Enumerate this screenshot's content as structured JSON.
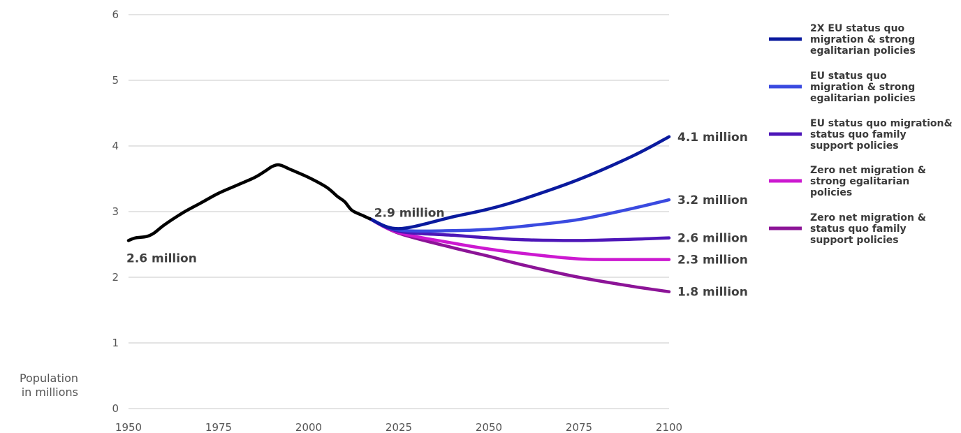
{
  "chart_data": {
    "type": "line",
    "ylabel_lines": [
      "Population",
      "in millions"
    ],
    "ylim": [
      0,
      6
    ],
    "yticks": [
      0,
      1,
      2,
      3,
      4,
      5,
      6
    ],
    "xlim": [
      1950,
      2100
    ],
    "xticks": [
      1950,
      1975,
      2000,
      2025,
      2050,
      2075,
      2100
    ],
    "grid": true,
    "legend_position": "right",
    "historical": {
      "color": "#000000",
      "x": [
        1950,
        1952,
        1955,
        1957,
        1960,
        1965,
        1970,
        1975,
        1980,
        1985,
        1988,
        1990,
        1992,
        1995,
        2000,
        2005,
        2008,
        2010,
        2012,
        2015,
        2017
      ],
      "y": [
        2.56,
        2.6,
        2.62,
        2.67,
        2.8,
        2.98,
        3.13,
        3.28,
        3.4,
        3.52,
        3.62,
        3.69,
        3.71,
        3.64,
        3.52,
        3.37,
        3.23,
        3.15,
        3.02,
        2.94,
        2.89
      ]
    },
    "series": [
      {
        "name_lines": [
          "2X EU status quo",
          "migration & strong",
          "egalitarian policies"
        ],
        "color": "#0a1a9e",
        "x": [
          2017,
          2025,
          2040,
          2050,
          2060,
          2075,
          2090,
          2100
        ],
        "y": [
          2.89,
          2.74,
          2.92,
          3.04,
          3.2,
          3.49,
          3.85,
          4.14
        ]
      },
      {
        "name_lines": [
          "EU status quo",
          "migration & strong",
          "egalitarian policies"
        ],
        "color": "#3a4ae0",
        "x": [
          2017,
          2025,
          2040,
          2050,
          2060,
          2075,
          2090,
          2100
        ],
        "y": [
          2.89,
          2.72,
          2.71,
          2.73,
          2.78,
          2.88,
          3.05,
          3.18
        ]
      },
      {
        "name_lines": [
          "EU status quo migration&",
          "status quo family",
          "support policies"
        ],
        "color": "#4d16b8",
        "x": [
          2017,
          2025,
          2040,
          2050,
          2060,
          2075,
          2090,
          2100
        ],
        "y": [
          2.89,
          2.7,
          2.64,
          2.6,
          2.57,
          2.56,
          2.58,
          2.6
        ]
      },
      {
        "name_lines": [
          "Zero net migration &",
          "strong egalitarian",
          "policies"
        ],
        "color": "#cc19d0",
        "x": [
          2017,
          2025,
          2040,
          2050,
          2060,
          2075,
          2090,
          2100
        ],
        "y": [
          2.89,
          2.68,
          2.52,
          2.43,
          2.36,
          2.28,
          2.27,
          2.27
        ]
      },
      {
        "name_lines": [
          "Zero net migration &",
          "status quo family",
          "support policies"
        ],
        "color": "#8c1497",
        "x": [
          2017,
          2025,
          2040,
          2050,
          2060,
          2075,
          2090,
          2100
        ],
        "y": [
          2.89,
          2.67,
          2.45,
          2.32,
          2.18,
          2.0,
          1.86,
          1.78
        ]
      }
    ],
    "annotations": [
      {
        "text": "2.6 million",
        "x": 1950,
        "y": 2.6
      },
      {
        "text": "2.9 million",
        "x": 2017,
        "y": 2.9
      }
    ],
    "end_labels": [
      "4.1 million",
      "3.2 million",
      "2.6 million",
      "2.3 million",
      "1.8 million"
    ]
  }
}
